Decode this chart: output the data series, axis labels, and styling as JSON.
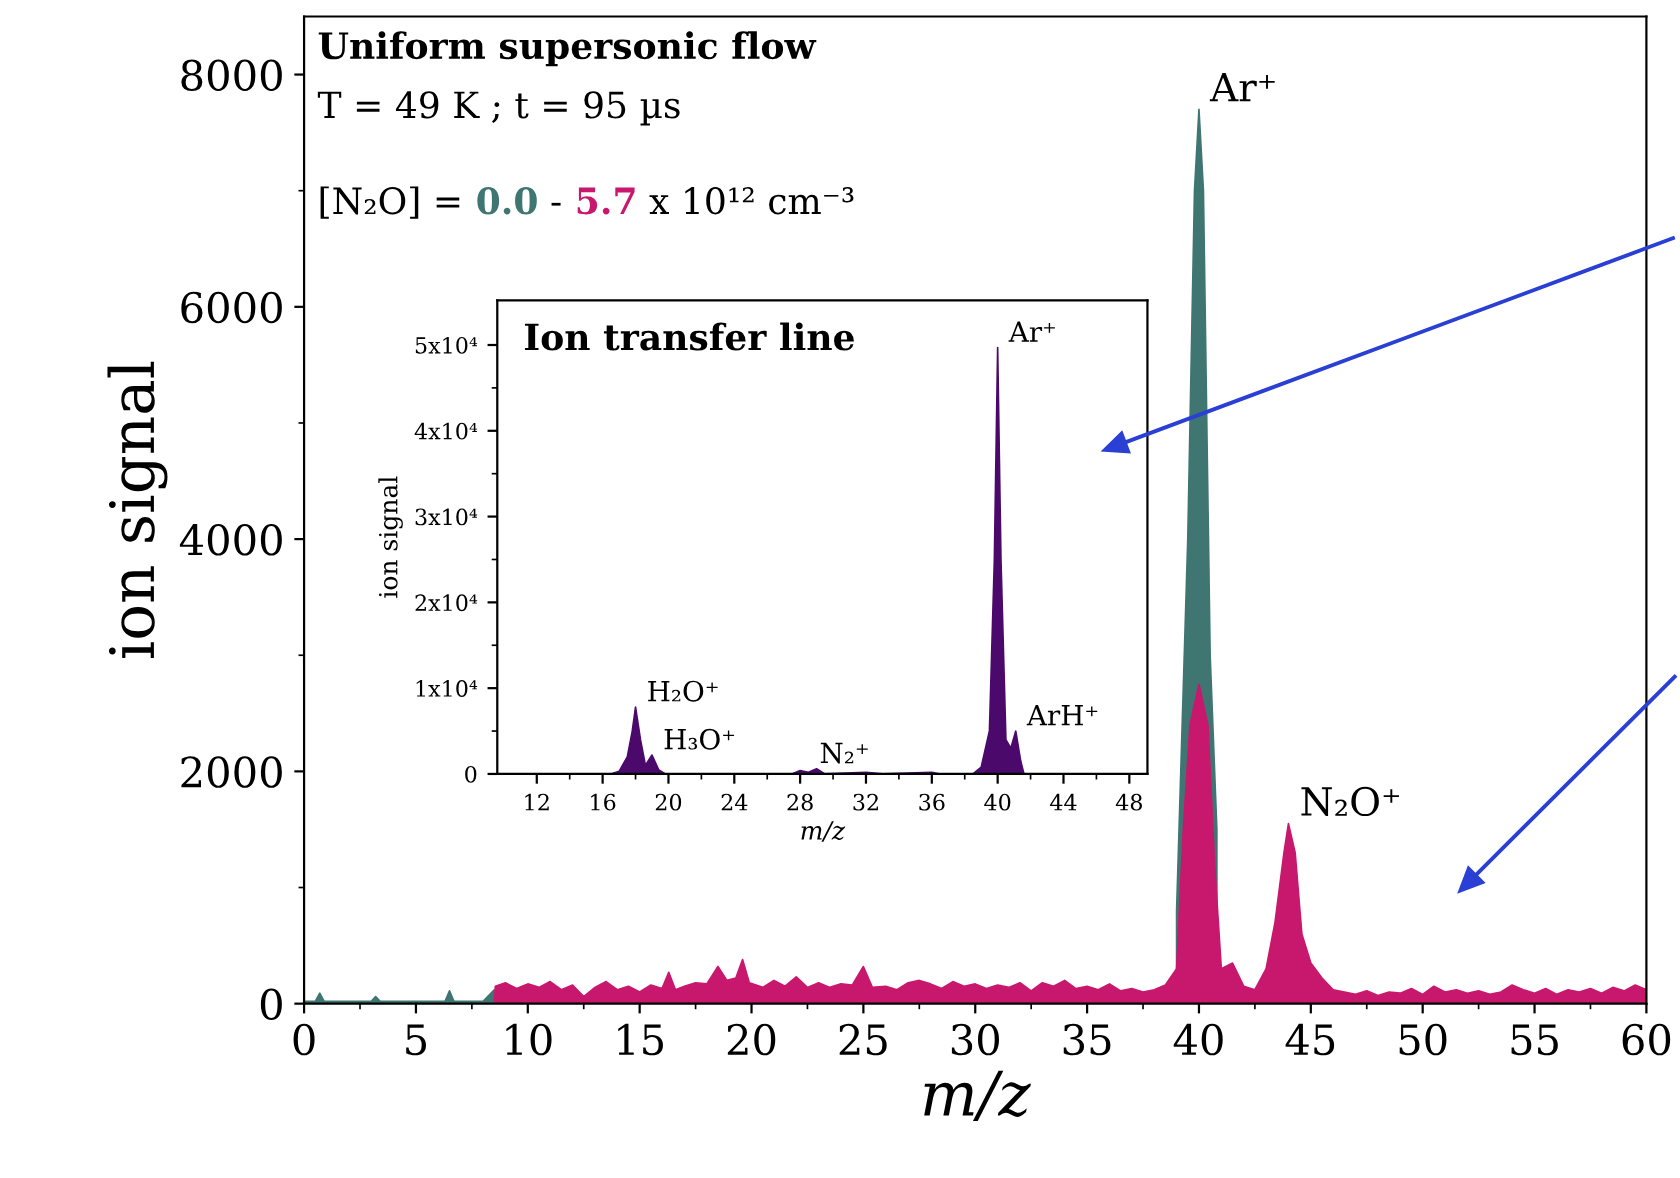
{
  "chart_data": [
    {
      "type": "area",
      "title": "Uniform supersonic flow",
      "subtitle": "T = 49 K ; t = 95 µs",
      "xlabel": "m/z",
      "ylabel": "ion signal",
      "xlim": [
        0,
        60
      ],
      "xticks": [
        0,
        5,
        10,
        15,
        20,
        25,
        30,
        35,
        40,
        45,
        50,
        55,
        60
      ],
      "ylim": [
        0,
        8500
      ],
      "yticks": [
        0,
        2000,
        4000,
        6000,
        8000
      ],
      "grid": false,
      "legend": "top left",
      "annotations": [
        {
          "text": "Ar⁺",
          "x": 40,
          "y": 7700
        },
        {
          "text": "N₂O⁺",
          "x": 44,
          "y": 1550
        },
        "[N₂O] =",
        "-",
        "x 10¹² cm⁻³"
      ],
      "series": [
        {
          "name": "0.0",
          "color": "#3f7672",
          "x": [
            0,
            0.5,
            0.7,
            0.9,
            2,
            3,
            3.2,
            3.4,
            5,
            6.3,
            6.5,
            6.7,
            8,
            8.5,
            8.6,
            39,
            39.5,
            39.8,
            40,
            40.2,
            40.5,
            40.8
          ],
          "values": [
            20,
            20,
            90,
            20,
            20,
            20,
            60,
            20,
            20,
            20,
            110,
            20,
            20,
            120,
            null,
            800,
            4000,
            7000,
            7700,
            7000,
            3000,
            1500
          ]
        },
        {
          "name": "5.7",
          "color": "#c8186e",
          "x": [
            8.5,
            8.55,
            9,
            9.5,
            10,
            10.5,
            11,
            11.5,
            12,
            12.5,
            13,
            13.5,
            14,
            14.5,
            15,
            15.5,
            16,
            16.3,
            16.6,
            17,
            17.5,
            18,
            18.5,
            18.9,
            19.3,
            19.6,
            19.9,
            20.5,
            21,
            21.5,
            22,
            22.5,
            23,
            23.5,
            24,
            24.5,
            25,
            25.4,
            26,
            26.5,
            27,
            27.5,
            28,
            28.5,
            29,
            29.5,
            30,
            30.5,
            31,
            31.5,
            32,
            32.5,
            33,
            33.5,
            34,
            34.5,
            35,
            35.5,
            36,
            36.5,
            37,
            37.5,
            38,
            38.5,
            39,
            39.3,
            39.6,
            40,
            40.4,
            40.7,
            41,
            41.5,
            42,
            42.5,
            43,
            43.4,
            43.8,
            44,
            44.3,
            44.6,
            45,
            45.5,
            46,
            46.5,
            47,
            47.5,
            48,
            48.5,
            49,
            49.5,
            50,
            50.5,
            51,
            51.5,
            52,
            52.5,
            53,
            53.5,
            54,
            54.5,
            55,
            55.5,
            56,
            56.5,
            57,
            57.5,
            58,
            58.5,
            59,
            59.5,
            60
          ],
          "values": [
            0,
            150,
            180,
            130,
            170,
            140,
            190,
            120,
            160,
            60,
            140,
            190,
            120,
            150,
            100,
            160,
            130,
            270,
            120,
            150,
            180,
            170,
            320,
            200,
            220,
            380,
            180,
            140,
            200,
            150,
            230,
            140,
            180,
            140,
            170,
            160,
            320,
            140,
            150,
            120,
            180,
            200,
            170,
            130,
            190,
            150,
            170,
            130,
            160,
            140,
            180,
            110,
            180,
            150,
            200,
            130,
            150,
            120,
            170,
            110,
            130,
            100,
            120,
            160,
            300,
            1500,
            2400,
            2750,
            2400,
            1200,
            300,
            350,
            150,
            120,
            300,
            700,
            1300,
            1550,
            1300,
            600,
            350,
            220,
            120,
            100,
            80,
            110,
            70,
            100,
            90,
            130,
            80,
            150,
            100,
            120,
            90,
            110,
            80,
            100,
            160,
            120,
            90,
            130,
            80,
            120,
            100,
            130,
            90,
            140,
            110,
            160,
            120
          ]
        }
      ]
    },
    {
      "type": "area",
      "title": "Ion transfer line",
      "xlabel": "m/z",
      "ylabel": "ion signal",
      "xlim": [
        9.6,
        49.1
      ],
      "xticks": [
        12,
        16,
        20,
        24,
        28,
        32,
        36,
        40,
        44,
        48
      ],
      "ylim": [
        0,
        55200
      ],
      "yticks": [
        0,
        {
          "value": 10000,
          "label": "1x10⁴"
        },
        {
          "value": 20000,
          "label": "2x10⁴"
        },
        {
          "value": 30000,
          "label": "3x10⁴"
        },
        {
          "value": 40000,
          "label": "4x10⁴"
        },
        {
          "value": 50000,
          "label": "5x10⁴"
        }
      ],
      "grid": false,
      "annotations": [
        {
          "text": "Ar⁺",
          "x": 40,
          "y": 49700
        },
        {
          "text": "ArH⁺",
          "x": 41.1,
          "y": 5000
        },
        {
          "text": "H₂O⁺",
          "x": 18,
          "y": 7800
        },
        {
          "text": "H₃O⁺",
          "x": 19,
          "y": 2200
        },
        {
          "text": "N₂⁺",
          "x": 28.5,
          "y": 600
        }
      ],
      "series": [
        {
          "color": "#4b0a6b",
          "x": [
            10,
            16.5,
            17,
            17.5,
            17.8,
            18,
            18.3,
            18.6,
            19,
            19.4,
            19.8,
            27.5,
            28,
            28.5,
            29,
            29.5,
            32,
            33,
            36,
            36.5,
            38.5,
            39,
            39.5,
            39.8,
            40,
            40.2,
            40.5,
            40.8,
            41.1,
            41.4,
            41.6,
            49
          ],
          "values": [
            0,
            0,
            300,
            2000,
            5000,
            7800,
            4000,
            1000,
            2200,
            500,
            0,
            0,
            400,
            200,
            600,
            0,
            200,
            0,
            200,
            0,
            0,
            800,
            5000,
            25000,
            49700,
            25000,
            4000,
            3000,
            5000,
            1500,
            0,
            0
          ]
        }
      ]
    }
  ]
}
